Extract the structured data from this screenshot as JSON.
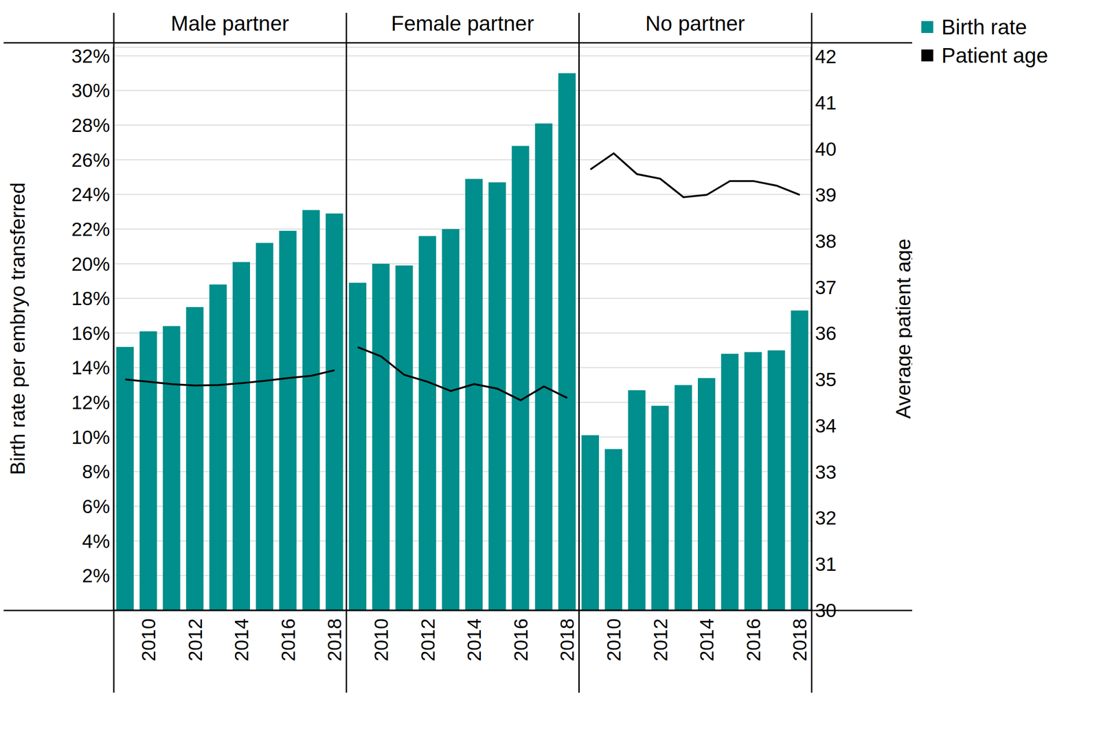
{
  "chart_data": [
    {
      "type": "bar",
      "title": "Male partner",
      "y_label": "Birth rate per embryo transferred",
      "categories": [
        null,
        "2010",
        null,
        "2012",
        null,
        "2014",
        null,
        "2016",
        null,
        "2018"
      ],
      "series": [
        {
          "name": "Birth rate",
          "color": "#008f8c",
          "values": [
            15.2,
            16.1,
            16.4,
            17.5,
            18.8,
            20.1,
            21.2,
            21.9,
            23.1,
            22.9
          ]
        },
        {
          "name": "Patient age",
          "type": "line",
          "axis": "y2",
          "color": "#000000",
          "values": [
            35.0,
            34.95,
            34.9,
            34.87,
            34.88,
            34.92,
            34.97,
            35.03,
            35.08,
            35.2
          ]
        }
      ],
      "ylim": [
        0,
        32.5
      ],
      "yticks": [
        {
          "value": 2,
          "label": "2%"
        },
        {
          "value": 4,
          "label": "4%"
        },
        {
          "value": 6,
          "label": "6%"
        },
        {
          "value": 8,
          "label": "8%"
        },
        {
          "value": 10,
          "label": "10%"
        },
        {
          "value": 12,
          "label": "12%"
        },
        {
          "value": 14,
          "label": "14%"
        },
        {
          "value": 16,
          "label": "16%"
        },
        {
          "value": 18,
          "label": "18%"
        },
        {
          "value": 20,
          "label": "20%"
        },
        {
          "value": 22,
          "label": "22%"
        },
        {
          "value": 24,
          "label": "24%"
        },
        {
          "value": 26,
          "label": "26%"
        },
        {
          "value": 28,
          "label": "28%"
        },
        {
          "value": 30,
          "label": "30%"
        },
        {
          "value": 32,
          "label": "32%"
        }
      ],
      "y2lim": [
        30,
        42.2
      ],
      "grid": true
    },
    {
      "type": "bar",
      "title": "Female partner",
      "categories": [
        null,
        "2010",
        null,
        "2012",
        null,
        "2014",
        null,
        "2016",
        null,
        "2018"
      ],
      "series": [
        {
          "name": "Birth rate",
          "color": "#008f8c",
          "values": [
            18.9,
            20.0,
            19.9,
            21.6,
            22.0,
            24.9,
            24.7,
            26.8,
            28.1,
            31.0
          ]
        },
        {
          "name": "Patient age",
          "type": "line",
          "axis": "y2",
          "color": "#000000",
          "values": [
            35.7,
            35.5,
            35.1,
            34.95,
            34.75,
            34.9,
            34.8,
            34.55,
            34.85,
            34.6
          ]
        }
      ],
      "ylim": [
        0,
        32.5
      ],
      "yticks": [
        {
          "value": 2,
          "label": "2%"
        },
        {
          "value": 4,
          "label": "4%"
        },
        {
          "value": 6,
          "label": "6%"
        },
        {
          "value": 8,
          "label": "8%"
        },
        {
          "value": 10,
          "label": "10%"
        },
        {
          "value": 12,
          "label": "12%"
        },
        {
          "value": 14,
          "label": "14%"
        },
        {
          "value": 16,
          "label": "16%"
        },
        {
          "value": 18,
          "label": "18%"
        },
        {
          "value": 20,
          "label": "20%"
        },
        {
          "value": 22,
          "label": "22%"
        },
        {
          "value": 24,
          "label": "24%"
        },
        {
          "value": 26,
          "label": "26%"
        },
        {
          "value": 28,
          "label": "28%"
        },
        {
          "value": 30,
          "label": "30%"
        },
        {
          "value": 32,
          "label": "32%"
        }
      ],
      "y2lim": [
        30,
        42.2
      ],
      "grid": true
    },
    {
      "type": "bar",
      "title": "No partner",
      "y2_label": "Average patient age",
      "legend": "right",
      "categories": [
        null,
        "2010",
        null,
        "2012",
        null,
        "2014",
        null,
        "2016",
        null,
        "2018"
      ],
      "series": [
        {
          "name": "Birth rate",
          "color": "#008f8c",
          "values": [
            10.1,
            9.3,
            12.7,
            11.8,
            13.0,
            13.4,
            14.8,
            14.9,
            15.0,
            17.3
          ]
        },
        {
          "name": "Patient age",
          "type": "line",
          "axis": "y2",
          "color": "#000000",
          "values": [
            39.55,
            39.9,
            39.45,
            39.35,
            38.95,
            39.0,
            39.3,
            39.3,
            39.2,
            39.0
          ]
        }
      ],
      "ylim": [
        0,
        32.5
      ],
      "yticks": [
        {
          "value": 2,
          "label": "2%"
        },
        {
          "value": 4,
          "label": "4%"
        },
        {
          "value": 6,
          "label": "6%"
        },
        {
          "value": 8,
          "label": "8%"
        },
        {
          "value": 10,
          "label": "10%"
        },
        {
          "value": 12,
          "label": "12%"
        },
        {
          "value": 14,
          "label": "14%"
        },
        {
          "value": 16,
          "label": "16%"
        },
        {
          "value": 18,
          "label": "18%"
        },
        {
          "value": 20,
          "label": "20%"
        },
        {
          "value": 22,
          "label": "22%"
        },
        {
          "value": 24,
          "label": "24%"
        },
        {
          "value": 26,
          "label": "26%"
        },
        {
          "value": 28,
          "label": "28%"
        },
        {
          "value": 30,
          "label": "30%"
        },
        {
          "value": 32,
          "label": "32%"
        }
      ],
      "y2lim": [
        30,
        42.2
      ],
      "y2ticks": [
        30,
        31,
        32,
        33,
        34,
        35,
        36,
        37,
        38,
        39,
        40,
        41,
        42
      ],
      "grid": true
    }
  ]
}
